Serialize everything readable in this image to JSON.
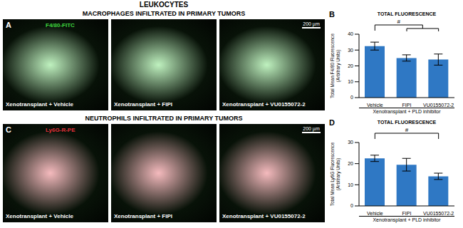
{
  "title": "LEUKOCYTES",
  "panels": [
    {
      "letter": "A",
      "heading": "MACROPHAGES INFILTRATED IN PRIMARY TUMORS",
      "stain": "F4/80-FITC",
      "scale_bar": "200 µm",
      "color": "#3fd63f",
      "images": [
        "Xenotransplant + Vehicle",
        "Xenotransplant + FIPI",
        "Xenotransplant + VU0155072-2"
      ]
    },
    {
      "letter": "C",
      "heading": "NEUTROPHILS INFILTRATED IN PRIMARY TUMORS",
      "stain": "Ly6G-R-PE",
      "scale_bar": "200 µm",
      "color": "#e0303a",
      "images": [
        "Xenotransplant + Vehicle",
        "Xenotransplant + FIPI",
        "Xenotransplant + VU0155072-2"
      ]
    }
  ],
  "chart_data": [
    {
      "type": "bar",
      "panel": "B",
      "title": "TOTAL FLUORESCENCE",
      "y_label": [
        "Total Mean F4/80 Fluorescence",
        "(Arbitrary Units)"
      ],
      "x_label": "Xenotransplant + PLD inhibitor",
      "categories": [
        "Vehicle",
        "FIPI",
        "VU0155072-2"
      ],
      "values": [
        32.5,
        25,
        24
      ],
      "errors": [
        2.5,
        2,
        3.5
      ],
      "color": "#2f78c4",
      "ylim": [
        0,
        40
      ],
      "yticks": [
        0,
        10,
        20,
        30,
        40
      ],
      "annotations": [
        {
          "text": "#",
          "from": "Vehicle",
          "to": [
            "FIPI",
            "VU0155072-2"
          ]
        }
      ]
    },
    {
      "type": "bar",
      "panel": "D",
      "title": "TOTAL FLUORESCENCE",
      "y_label": [
        "Total Mean Ly6G Fluorescence",
        "(Arbitrary Units)"
      ],
      "x_label": "Xenotransplant + PLD inhibitor",
      "categories": [
        "Vehicle",
        "FIPI",
        "VU0155072-2"
      ],
      "values": [
        22.5,
        19.5,
        14
      ],
      "errors": [
        1.5,
        3,
        1.5
      ],
      "color": "#2f78c4",
      "ylim": [
        0,
        30
      ],
      "yticks": [
        0,
        10,
        20,
        30
      ],
      "annotations": [
        {
          "text": "#",
          "from": "Vehicle",
          "to": [
            "VU0155072-2"
          ]
        }
      ]
    }
  ]
}
